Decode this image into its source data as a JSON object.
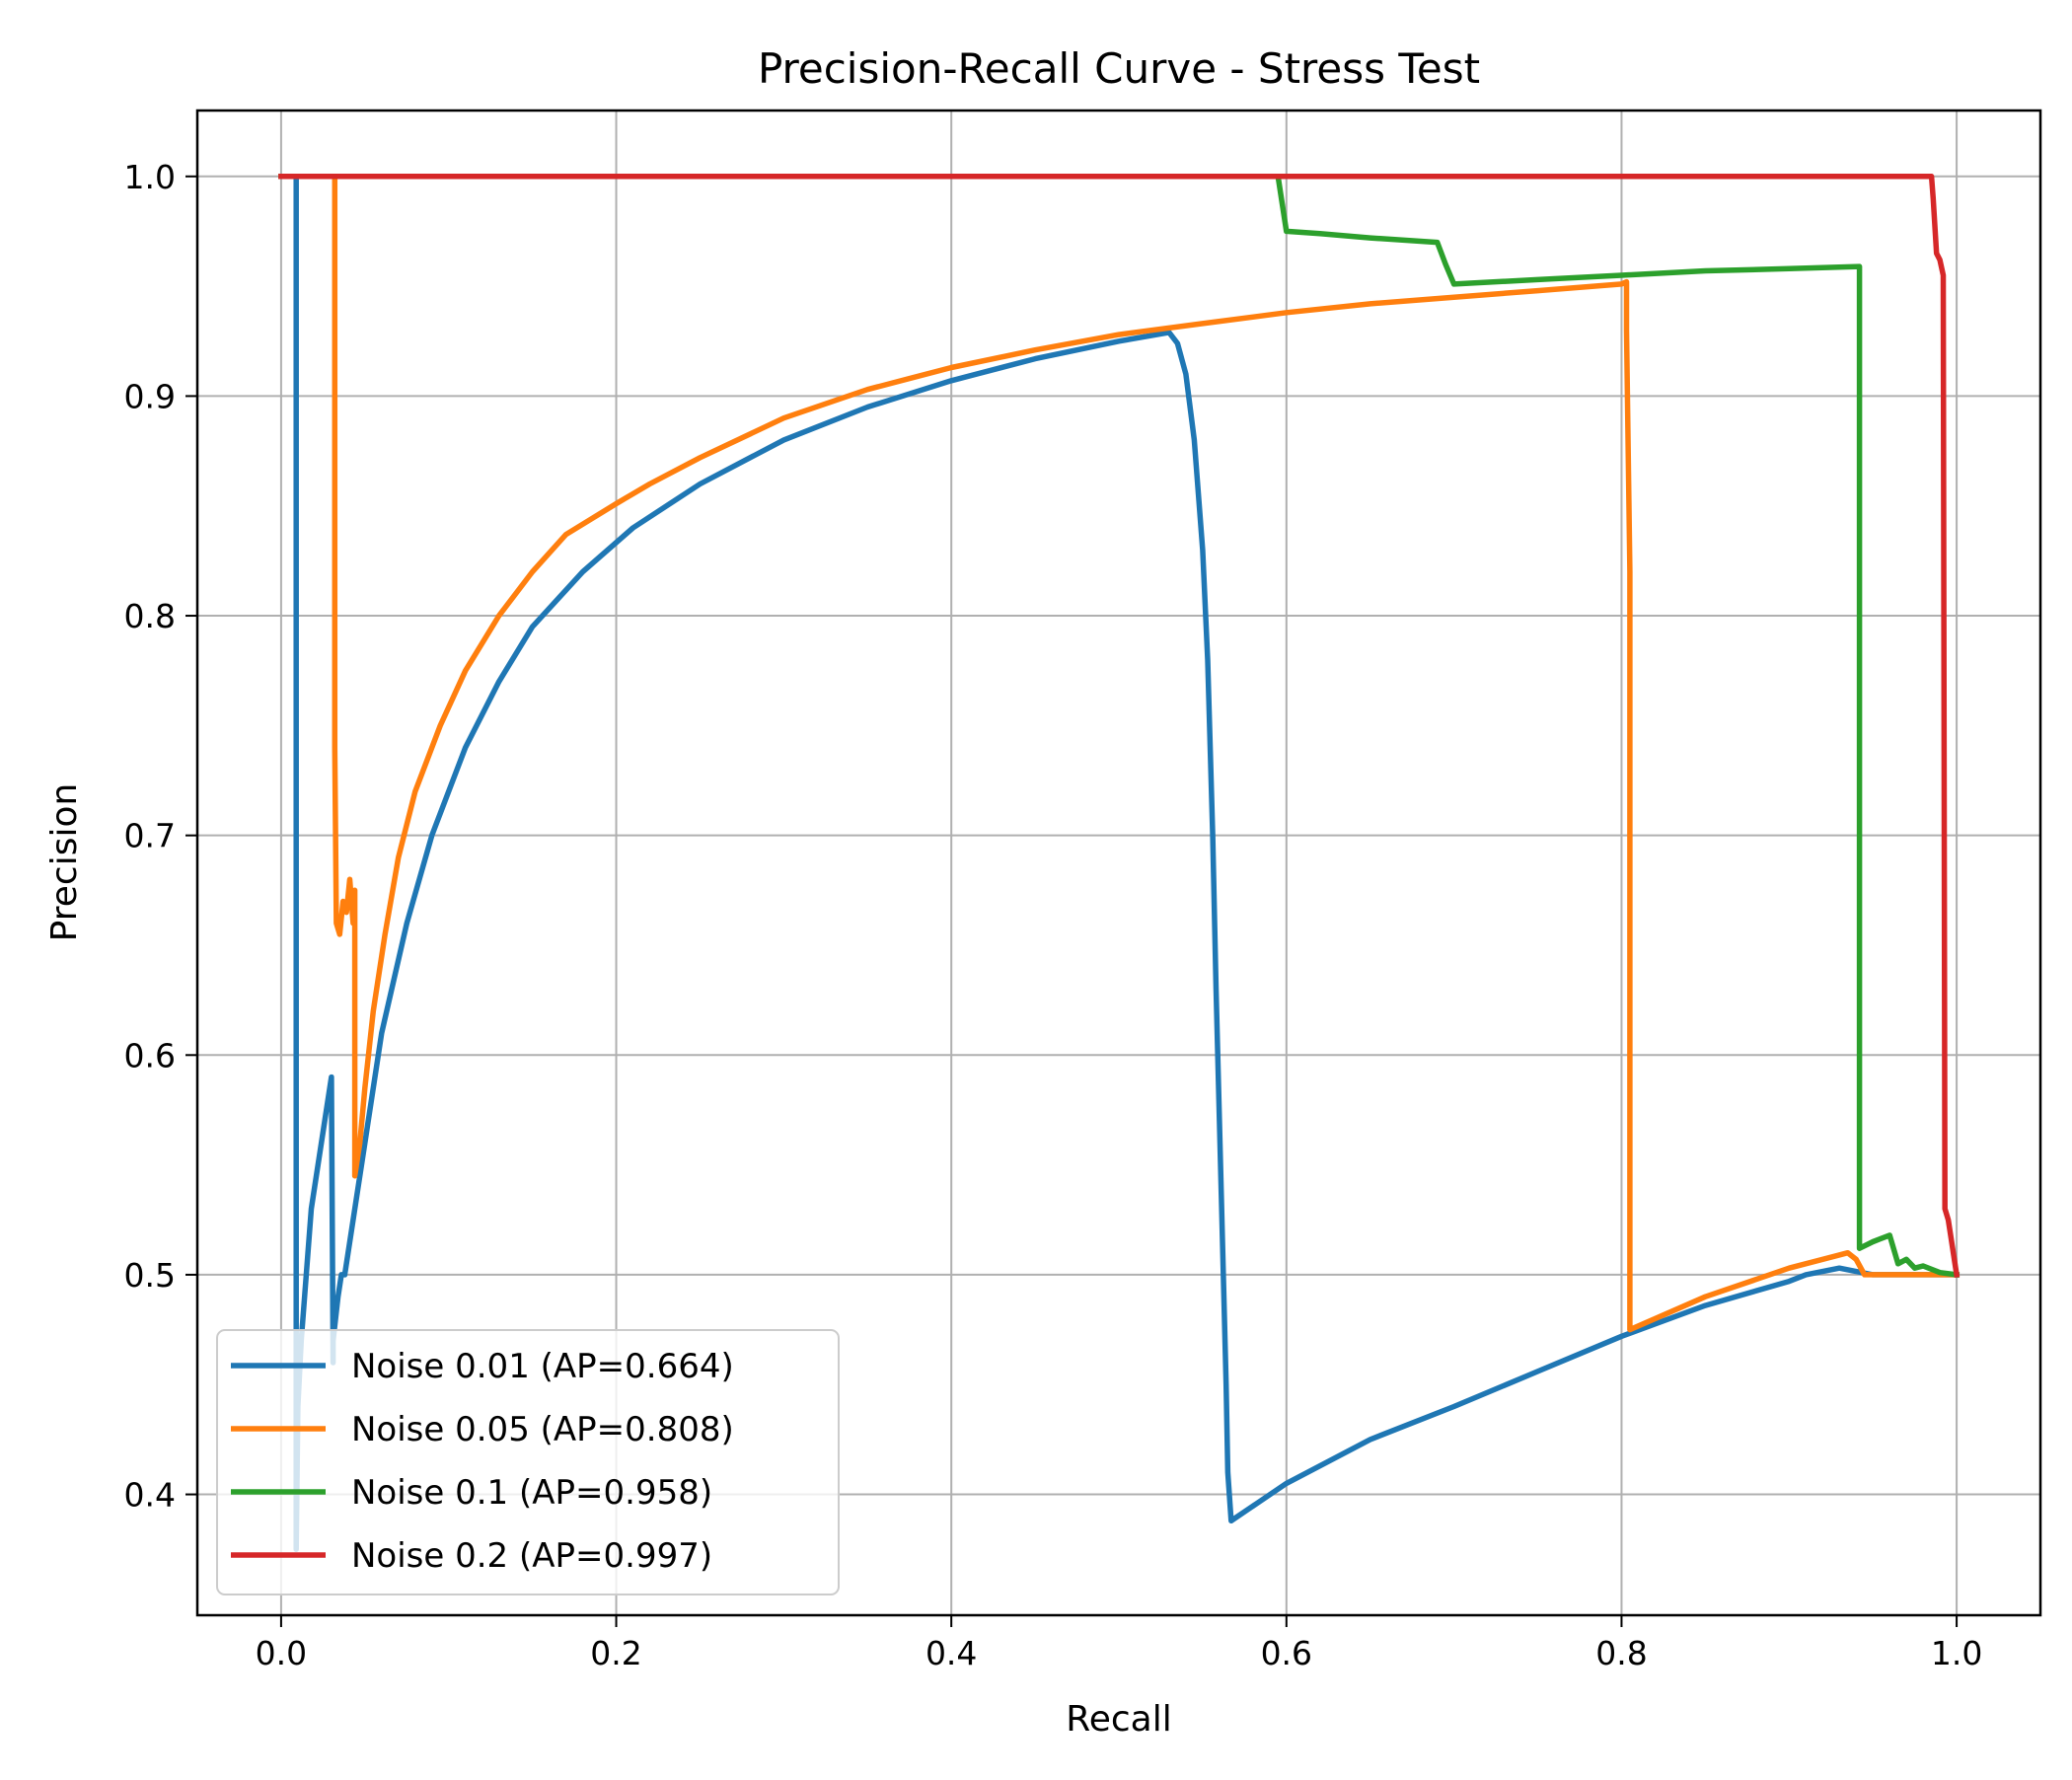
{
  "chart_data": {
    "type": "line",
    "title": "Precision-Recall Curve - Stress Test",
    "xlabel": "Recall",
    "ylabel": "Precision",
    "xlim": [
      -0.05,
      1.05
    ],
    "ylim": [
      0.345,
      1.03
    ],
    "xticks": [
      0.0,
      0.2,
      0.4,
      0.6,
      0.8,
      1.0
    ],
    "xtick_labels": [
      "0.0",
      "0.2",
      "0.4",
      "0.6",
      "0.8",
      "1.0"
    ],
    "yticks": [
      0.4,
      0.5,
      0.6,
      0.7,
      0.8,
      0.9,
      1.0
    ],
    "ytick_labels": [
      "0.4",
      "0.5",
      "0.6",
      "0.7",
      "0.8",
      "0.9",
      "1.0"
    ],
    "grid": true,
    "legend_position": "lower-left",
    "series": [
      {
        "name": "Noise 0.01 (AP=0.664)",
        "color": "#1f77b4",
        "x": [
          0.0,
          0.009,
          0.009,
          0.009,
          0.009,
          0.01,
          0.012,
          0.015,
          0.018,
          0.022,
          0.026,
          0.03,
          0.031,
          0.031,
          0.034,
          0.036,
          0.038,
          0.042,
          0.05,
          0.06,
          0.075,
          0.09,
          0.11,
          0.13,
          0.15,
          0.18,
          0.21,
          0.25,
          0.3,
          0.35,
          0.4,
          0.45,
          0.5,
          0.53,
          0.535,
          0.54,
          0.545,
          0.55,
          0.553,
          0.556,
          0.558,
          0.56,
          0.562,
          0.564,
          0.565,
          0.567,
          0.6,
          0.65,
          0.7,
          0.75,
          0.8,
          0.85,
          0.9,
          0.91,
          0.93,
          0.95,
          0.97,
          1.0
        ],
        "y": [
          1.0,
          1.0,
          0.6,
          0.45,
          0.375,
          0.44,
          0.47,
          0.5,
          0.53,
          0.55,
          0.57,
          0.59,
          0.46,
          0.47,
          0.49,
          0.5,
          0.5,
          0.52,
          0.56,
          0.61,
          0.66,
          0.7,
          0.74,
          0.77,
          0.795,
          0.82,
          0.84,
          0.86,
          0.88,
          0.895,
          0.907,
          0.917,
          0.925,
          0.929,
          0.924,
          0.91,
          0.88,
          0.83,
          0.78,
          0.7,
          0.63,
          0.57,
          0.51,
          0.45,
          0.41,
          0.388,
          0.405,
          0.425,
          0.44,
          0.456,
          0.472,
          0.486,
          0.497,
          0.5,
          0.503,
          0.5,
          0.5,
          0.5
        ]
      },
      {
        "name": "Noise 0.05 (AP=0.808)",
        "color": "#ff7f0e",
        "x": [
          0.0,
          0.032,
          0.032,
          0.033,
          0.035,
          0.037,
          0.039,
          0.041,
          0.043,
          0.044,
          0.044,
          0.047,
          0.05,
          0.055,
          0.062,
          0.07,
          0.08,
          0.095,
          0.11,
          0.13,
          0.15,
          0.17,
          0.2,
          0.22,
          0.25,
          0.3,
          0.35,
          0.4,
          0.45,
          0.5,
          0.55,
          0.6,
          0.65,
          0.7,
          0.75,
          0.8,
          0.803,
          0.803,
          0.805,
          0.805,
          0.85,
          0.9,
          0.935,
          0.94,
          0.945,
          0.96,
          0.98,
          1.0
        ],
        "y": [
          1.0,
          1.0,
          0.74,
          0.66,
          0.655,
          0.67,
          0.665,
          0.68,
          0.66,
          0.675,
          0.545,
          0.56,
          0.585,
          0.62,
          0.655,
          0.69,
          0.72,
          0.75,
          0.775,
          0.8,
          0.82,
          0.837,
          0.851,
          0.86,
          0.872,
          0.89,
          0.903,
          0.913,
          0.921,
          0.928,
          0.933,
          0.938,
          0.942,
          0.945,
          0.948,
          0.951,
          0.952,
          0.93,
          0.82,
          0.475,
          0.49,
          0.503,
          0.51,
          0.507,
          0.5,
          0.5,
          0.5,
          0.5
        ]
      },
      {
        "name": "Noise 0.1 (AP=0.958)",
        "color": "#2ca02c",
        "x": [
          0.0,
          0.595,
          0.598,
          0.6,
          0.62,
          0.65,
          0.69,
          0.695,
          0.7,
          0.75,
          0.8,
          0.85,
          0.9,
          0.942,
          0.942,
          0.95,
          0.96,
          0.965,
          0.97,
          0.975,
          0.98,
          0.99,
          1.0
        ],
        "y": [
          1.0,
          1.0,
          0.985,
          0.975,
          0.974,
          0.972,
          0.97,
          0.96,
          0.951,
          0.953,
          0.955,
          0.957,
          0.958,
          0.959,
          0.512,
          0.515,
          0.518,
          0.505,
          0.507,
          0.503,
          0.504,
          0.501,
          0.5
        ]
      },
      {
        "name": "Noise 0.2 (AP=0.997)",
        "color": "#d62728",
        "x": [
          0.0,
          0.985,
          0.986,
          0.988,
          0.99,
          0.992,
          0.993,
          0.995,
          0.997,
          0.999,
          1.0
        ],
        "y": [
          1.0,
          1.0,
          0.99,
          0.965,
          0.962,
          0.955,
          0.53,
          0.525,
          0.515,
          0.505,
          0.5
        ]
      }
    ]
  }
}
